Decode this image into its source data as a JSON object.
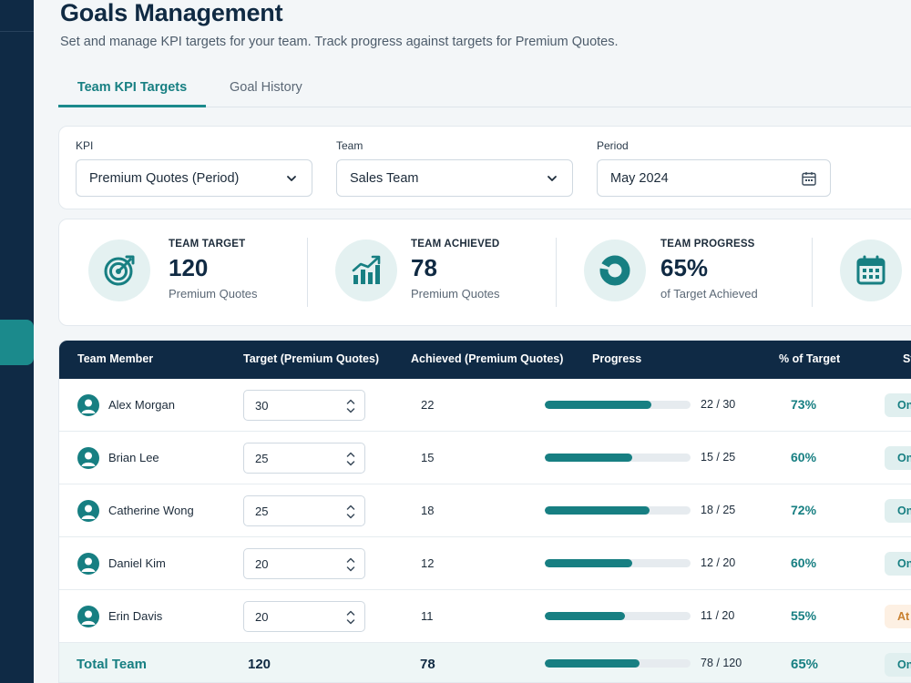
{
  "page": {
    "title": "Goals Management",
    "subtitle": "Set and manage KPI targets for your team. Track progress against targets for Premium Quotes."
  },
  "tabs": [
    {
      "label": "Team KPI Targets",
      "active": true
    },
    {
      "label": "Goal History",
      "active": false
    }
  ],
  "filters": {
    "kpi": {
      "label": "KPI",
      "value": "Premium Quotes (Period)"
    },
    "team": {
      "label": "Team",
      "value": "Sales Team"
    },
    "period": {
      "label": "Period",
      "value": "May 2024"
    }
  },
  "stats": [
    {
      "label": "TEAM TARGET",
      "value": "120",
      "sub": "Premium Quotes",
      "icon": "target-icon"
    },
    {
      "label": "TEAM ACHIEVED",
      "value": "78",
      "sub": "Premium Quotes",
      "icon": "chart-up-icon"
    },
    {
      "label": "TEAM PROGRESS",
      "value": "65%",
      "sub": "of Target Achieved",
      "icon": "donut-icon"
    },
    {
      "label": "",
      "value": "",
      "sub": "",
      "icon": "calendar-icon"
    }
  ],
  "table": {
    "columns": [
      "Team Member",
      "Target (Premium Quotes)",
      "Achieved (Premium Quotes)",
      "Progress",
      "% of Target",
      "St"
    ],
    "rows": [
      {
        "name": "Alex Morgan",
        "target": "30",
        "achieved": "22",
        "progress_fraction": 0.73,
        "progress_text": "22 / 30",
        "pct": "73%",
        "status": "On",
        "status_kind": "on"
      },
      {
        "name": "Brian Lee",
        "target": "25",
        "achieved": "15",
        "progress_fraction": 0.6,
        "progress_text": "15 / 25",
        "pct": "60%",
        "status": "On",
        "status_kind": "on"
      },
      {
        "name": "Catherine Wong",
        "target": "25",
        "achieved": "18",
        "progress_fraction": 0.72,
        "progress_text": "18 / 25",
        "pct": "72%",
        "status": "On",
        "status_kind": "on"
      },
      {
        "name": "Daniel Kim",
        "target": "20",
        "achieved": "12",
        "progress_fraction": 0.6,
        "progress_text": "12 / 20",
        "pct": "60%",
        "status": "On",
        "status_kind": "on"
      },
      {
        "name": "Erin Davis",
        "target": "20",
        "achieved": "11",
        "progress_fraction": 0.55,
        "progress_text": "11 / 20",
        "pct": "55%",
        "status": "At",
        "status_kind": "warn"
      }
    ],
    "total": {
      "label": "Total Team",
      "target": "120",
      "achieved": "78",
      "progress_fraction": 0.65,
      "progress_text": "78 / 120",
      "pct": "65%",
      "status": "On"
    }
  },
  "colors": {
    "accent": "#177f82",
    "navy": "#0f2a45",
    "warn": "#c9802f"
  }
}
